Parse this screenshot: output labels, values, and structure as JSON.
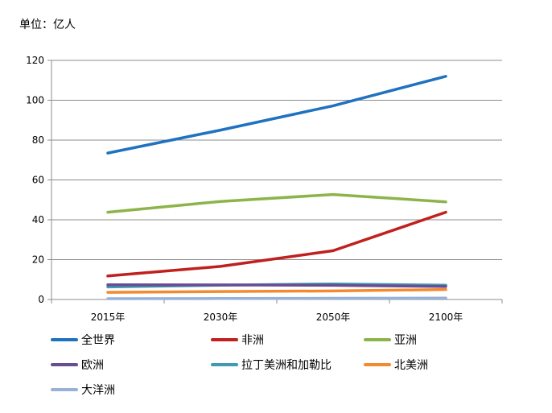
{
  "chart_data": {
    "type": "line",
    "title": "",
    "unit_label": "单位：亿人",
    "xlabel": "",
    "ylabel": "",
    "categories": [
      "2015年",
      "2030年",
      "2050年",
      "2100年"
    ],
    "ylim": [
      0,
      120
    ],
    "yticks": [
      0,
      20,
      40,
      60,
      80,
      100,
      120
    ],
    "grid": true,
    "legend_position": "bottom",
    "series": [
      {
        "name": "全世界",
        "color": "#1f72c0",
        "values": [
          73.5,
          85.0,
          97.2,
          112.0
        ]
      },
      {
        "name": "非洲",
        "color": "#c0201e",
        "values": [
          11.8,
          16.6,
          24.5,
          43.8
        ]
      },
      {
        "name": "亚洲",
        "color": "#8db44a",
        "values": [
          43.8,
          49.2,
          52.7,
          49.0
        ]
      },
      {
        "name": "欧洲",
        "color": "#6a4c93",
        "values": [
          7.4,
          7.3,
          7.1,
          6.5
        ]
      },
      {
        "name": "拉丁美洲和加勒比",
        "color": "#3e9bb0",
        "values": [
          6.3,
          7.2,
          7.8,
          7.2
        ]
      },
      {
        "name": "北美洲",
        "color": "#f38a2f",
        "values": [
          3.6,
          4.0,
          4.3,
          5.0
        ]
      },
      {
        "name": "大洋洲",
        "color": "#97b1d9",
        "values": [
          0.4,
          0.5,
          0.6,
          0.7
        ]
      }
    ]
  }
}
